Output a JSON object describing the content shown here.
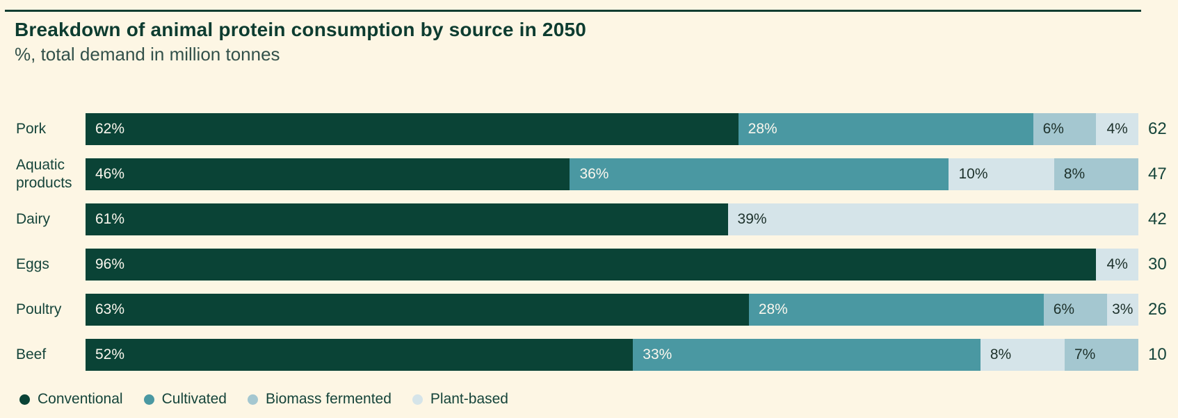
{
  "title": "Breakdown of animal protein consumption by source in 2050",
  "subtitle": "%, total demand in million tonnes",
  "colors": {
    "background": "#fdf6e4",
    "rule": "#123d31",
    "conventional": "#0a4336",
    "cultivated": "#4a98a2",
    "biomass_fermented": "#a4c7d0",
    "plant_based": "#d5e4e9",
    "text_dark": "#15443a",
    "text_on_dark_segment": "#fbf7ee",
    "text_on_light_segment": "#1d312b"
  },
  "legend": [
    {
      "label": "Conventional",
      "color_key": "conventional"
    },
    {
      "label": "Cultivated",
      "color_key": "cultivated"
    },
    {
      "label": "Biomass fermented",
      "color_key": "biomass_fermented"
    },
    {
      "label": "Plant-based",
      "color_key": "plant_based"
    }
  ],
  "chart_data": {
    "type": "bar",
    "orientation": "horizontal",
    "stacked": true,
    "unit": "%",
    "value_axis_range": [
      0,
      100
    ],
    "grid": false,
    "legend_position": "bottom",
    "totals_label_meaning": "total demand in million tonnes",
    "categories": [
      "Pork",
      "Aquatic products",
      "Dairy",
      "Eggs",
      "Poultry",
      "Beef"
    ],
    "totals": [
      62,
      47,
      42,
      30,
      26,
      10
    ],
    "rows": [
      {
        "label": "Pork",
        "total": "62",
        "segments": [
          {
            "name": "Conventional",
            "color_key": "conventional",
            "value": 62
          },
          {
            "name": "Cultivated",
            "color_key": "cultivated",
            "value": 28
          },
          {
            "name": "Biomass fermented",
            "color_key": "biomass_fermented",
            "value": 6
          },
          {
            "name": "Plant-based",
            "color_key": "plant_based",
            "value": 4
          }
        ]
      },
      {
        "label": "Aquatic products",
        "total": "47",
        "segments": [
          {
            "name": "Conventional",
            "color_key": "conventional",
            "value": 46
          },
          {
            "name": "Cultivated",
            "color_key": "cultivated",
            "value": 36
          },
          {
            "name": "Plant-based",
            "color_key": "plant_based",
            "value": 10
          },
          {
            "name": "Biomass fermented",
            "color_key": "biomass_fermented",
            "value": 8
          }
        ]
      },
      {
        "label": "Dairy",
        "total": "42",
        "segments": [
          {
            "name": "Conventional",
            "color_key": "conventional",
            "value": 61
          },
          {
            "name": "Plant-based",
            "color_key": "plant_based",
            "value": 39
          }
        ]
      },
      {
        "label": "Eggs",
        "total": "30",
        "segments": [
          {
            "name": "Conventional",
            "color_key": "conventional",
            "value": 96
          },
          {
            "name": "Plant-based",
            "color_key": "plant_based",
            "value": 4
          }
        ]
      },
      {
        "label": "Poultry",
        "total": "26",
        "segments": [
          {
            "name": "Conventional",
            "color_key": "conventional",
            "value": 63
          },
          {
            "name": "Cultivated",
            "color_key": "cultivated",
            "value": 28
          },
          {
            "name": "Biomass fermented",
            "color_key": "biomass_fermented",
            "value": 6
          },
          {
            "name": "Plant-based",
            "color_key": "plant_based",
            "value": 3
          }
        ]
      },
      {
        "label": "Beef",
        "total": "10",
        "segments": [
          {
            "name": "Conventional",
            "color_key": "conventional",
            "value": 52
          },
          {
            "name": "Cultivated",
            "color_key": "cultivated",
            "value": 33
          },
          {
            "name": "Plant-based",
            "color_key": "plant_based",
            "value": 8
          },
          {
            "name": "Biomass fermented",
            "color_key": "biomass_fermented",
            "value": 7
          }
        ]
      }
    ]
  }
}
